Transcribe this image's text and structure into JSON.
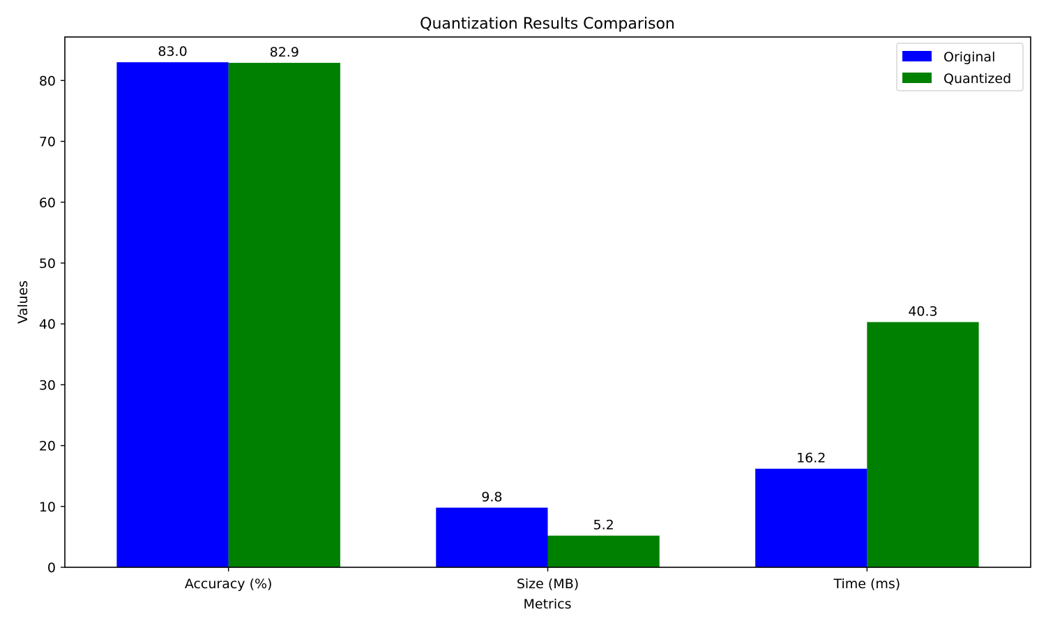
{
  "chart_data": {
    "type": "bar",
    "title": "Quantization Results Comparison",
    "xlabel": "Metrics",
    "ylabel": "Values",
    "categories": [
      "Accuracy (%)",
      "Size (MB)",
      "Time (ms)"
    ],
    "series": [
      {
        "name": "Original",
        "color": "#0000ff",
        "values": [
          83.0,
          9.8,
          16.2
        ]
      },
      {
        "name": "Quantized",
        "color": "#008000",
        "values": [
          82.9,
          5.2,
          40.3
        ]
      }
    ],
    "data_labels": [
      [
        "83.0",
        "9.8",
        "16.2"
      ],
      [
        "82.9",
        "5.2",
        "40.3"
      ]
    ],
    "ylim": [
      0,
      87.15
    ],
    "yticks": [
      0,
      10,
      20,
      30,
      40,
      50,
      60,
      70,
      80
    ],
    "grid": false,
    "legend_position": "top-right"
  }
}
